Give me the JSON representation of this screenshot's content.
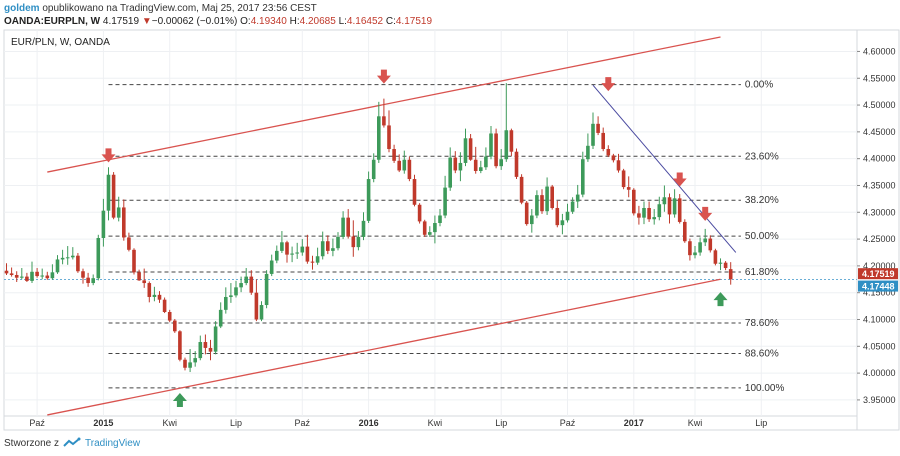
{
  "header": {
    "author": "goldem",
    "published": "opublikowano na TradingView.com, Maj 25, 2017 23:56 CEST",
    "symbol": "OANDA:EURPLN, W",
    "last": "4.17519",
    "change_arrow": "▼",
    "change": "−0.00062 (−0.01%)",
    "open_label": "O:",
    "open": "4.19340",
    "high_label": "H:",
    "high": "4.20685",
    "low_label": "L:",
    "low": "4.16452",
    "close_label": "C:",
    "close": "4.17519"
  },
  "footer": {
    "prefix": "Stworzone z",
    "brand": "TradingView",
    "icon": "tradingview-logo-icon"
  },
  "colors": {
    "up": "#3d9a5a",
    "down": "#c0392b",
    "channel": "#d9534f",
    "trend": "#4a4aa0",
    "arrow_down": "#d9534f",
    "arrow_up": "#3d9a5a",
    "grid": "#eef0f3",
    "axis_text": "#333333"
  },
  "chart_data": {
    "type": "candlestick",
    "title": "EUR/PLN, W, OANDA",
    "ylim": [
      3.92,
      4.64
    ],
    "y_ticks": [
      "4.60000",
      "4.55000",
      "4.50000",
      "4.45000",
      "4.40000",
      "4.35000",
      "4.30000",
      "4.25000",
      "4.20000",
      "4.15000",
      "4.10000",
      "4.05000",
      "4.00000",
      "3.95000"
    ],
    "x_ticks": [
      {
        "label": "Paź",
        "week": 6,
        "bold": false
      },
      {
        "label": "2015",
        "week": 19,
        "bold": true
      },
      {
        "label": "Kwi",
        "week": 32,
        "bold": false
      },
      {
        "label": "Lip",
        "week": 45,
        "bold": false
      },
      {
        "label": "Paź",
        "week": 58,
        "bold": false
      },
      {
        "label": "2016",
        "week": 71,
        "bold": true
      },
      {
        "label": "Kwi",
        "week": 84,
        "bold": false
      },
      {
        "label": "Lip",
        "week": 97,
        "bold": false
      },
      {
        "label": "Paź",
        "week": 110,
        "bold": false
      },
      {
        "label": "2017",
        "week": 123,
        "bold": true
      },
      {
        "label": "Kwi",
        "week": 135,
        "bold": false
      },
      {
        "label": "Lip",
        "week": 148,
        "bold": false
      }
    ],
    "price_labels": [
      {
        "value": 4.17519,
        "text": "4.17519",
        "color": "#c0392b"
      },
      {
        "value": 4.17448,
        "text": "4.17448",
        "color": "#2f8fc4"
      }
    ],
    "current_price_line": 4.1745,
    "fibonacci": [
      {
        "label": "0.00%",
        "value": 4.538
      },
      {
        "label": "23.60%",
        "value": 4.4045
      },
      {
        "label": "38.20%",
        "value": 4.3225
      },
      {
        "label": "50.00%",
        "value": 4.2555
      },
      {
        "label": "61.80%",
        "value": 4.1885
      },
      {
        "label": "78.60%",
        "value": 4.0935
      },
      {
        "label": "88.60%",
        "value": 4.0365
      },
      {
        "label": "100.00%",
        "value": 3.9725
      }
    ],
    "fib_week_range": [
      20,
      144
    ],
    "channel_lines": [
      {
        "w1": 8,
        "v1": 4.375,
        "w2": 140,
        "v2": 4.627
      },
      {
        "w1": 8,
        "v1": 3.922,
        "w2": 140,
        "v2": 4.175
      }
    ],
    "trend_line": {
      "w1": 115,
      "v1": 4.537,
      "w2": 143,
      "v2": 4.225
    },
    "markers": [
      {
        "dir": "down",
        "week": 20,
        "value": 4.393
      },
      {
        "dir": "down",
        "week": 74,
        "value": 4.54
      },
      {
        "dir": "down",
        "week": 118,
        "value": 4.526
      },
      {
        "dir": "down",
        "week": 132,
        "value": 4.348
      },
      {
        "dir": "down",
        "week": 137,
        "value": 4.284
      },
      {
        "dir": "up",
        "week": 34,
        "value": 3.963
      },
      {
        "dir": "up",
        "week": 140,
        "value": 4.151
      }
    ],
    "candles": [
      [
        4.191,
        4.205,
        4.198,
        4.183,
        4.186
      ],
      [
        4.186,
        4.197,
        4.195,
        4.18,
        4.183
      ],
      [
        4.183,
        4.19,
        4.189,
        4.17,
        4.178
      ],
      [
        4.178,
        4.196,
        4.193,
        4.175,
        4.18
      ],
      [
        4.18,
        4.187,
        4.185,
        4.17,
        4.172
      ],
      [
        4.172,
        4.208,
        4.2,
        4.168,
        4.189
      ],
      [
        4.189,
        4.196,
        4.194,
        4.178,
        4.181
      ],
      [
        4.181,
        4.195,
        4.19,
        4.175,
        4.182
      ],
      [
        4.182,
        4.189,
        4.186,
        4.174,
        4.177
      ],
      [
        4.177,
        4.203,
        4.198,
        4.174,
        4.188
      ],
      [
        4.188,
        4.22,
        4.218,
        4.185,
        4.212
      ],
      [
        4.212,
        4.23,
        4.223,
        4.203,
        4.215
      ],
      [
        4.215,
        4.237,
        4.222,
        4.202,
        4.216
      ],
      [
        4.216,
        4.235,
        4.227,
        4.212,
        4.219
      ],
      [
        4.219,
        4.224,
        4.221,
        4.187,
        4.19
      ],
      [
        4.19,
        4.195,
        4.193,
        4.167,
        4.178
      ],
      [
        4.178,
        4.187,
        4.186,
        4.161,
        4.168
      ],
      [
        4.168,
        4.184,
        4.181,
        4.164,
        4.177
      ],
      [
        4.177,
        4.258,
        4.256,
        4.173,
        4.252
      ],
      [
        4.252,
        4.325,
        4.319,
        4.236,
        4.303
      ],
      [
        4.303,
        4.384,
        4.38,
        4.285,
        4.37
      ],
      [
        4.37,
        4.375,
        4.37,
        4.287,
        4.29
      ],
      [
        4.29,
        4.329,
        4.322,
        4.283,
        4.309
      ],
      [
        4.309,
        4.324,
        4.319,
        4.247,
        4.253
      ],
      [
        4.253,
        4.262,
        4.26,
        4.227,
        4.23
      ],
      [
        4.23,
        4.233,
        4.231,
        4.184,
        4.188
      ],
      [
        4.188,
        4.193,
        4.192,
        4.172,
        4.173
      ],
      [
        4.173,
        4.195,
        4.178,
        4.159,
        4.168
      ],
      [
        4.168,
        4.171,
        4.17,
        4.132,
        4.142
      ],
      [
        4.142,
        4.161,
        4.148,
        4.134,
        4.146
      ],
      [
        4.146,
        4.153,
        4.151,
        4.131,
        4.137
      ],
      [
        4.137,
        4.141,
        4.139,
        4.112,
        4.114
      ],
      [
        4.114,
        4.118,
        4.116,
        4.095,
        4.098
      ],
      [
        4.098,
        4.101,
        4.099,
        4.075,
        4.078
      ],
      [
        4.078,
        4.08,
        4.078,
        4.022,
        4.025
      ],
      [
        4.025,
        4.029,
        4.028,
        4.005,
        4.01
      ],
      [
        4.01,
        4.045,
        4.025,
        4.002,
        4.02
      ],
      [
        4.02,
        4.041,
        4.03,
        4.012,
        4.028
      ],
      [
        4.028,
        4.07,
        4.064,
        4.024,
        4.058
      ],
      [
        4.058,
        4.072,
        4.065,
        4.035,
        4.047
      ],
      [
        4.047,
        4.062,
        4.051,
        4.024,
        4.04
      ],
      [
        4.04,
        4.097,
        4.093,
        4.035,
        4.087
      ],
      [
        4.087,
        4.132,
        4.128,
        4.084,
        4.118
      ],
      [
        4.118,
        4.16,
        4.153,
        4.111,
        4.142
      ],
      [
        4.142,
        4.168,
        4.156,
        4.131,
        4.145
      ],
      [
        4.145,
        4.172,
        4.164,
        4.141,
        4.16
      ],
      [
        4.16,
        4.18,
        4.176,
        4.151,
        4.168
      ],
      [
        4.168,
        4.196,
        4.182,
        4.164,
        4.18
      ],
      [
        4.18,
        4.192,
        4.187,
        4.146,
        4.15
      ],
      [
        4.15,
        4.175,
        4.152,
        4.097,
        4.1
      ],
      [
        4.1,
        4.134,
        4.132,
        4.097,
        4.127
      ],
      [
        4.127,
        4.192,
        4.187,
        4.121,
        4.185
      ],
      [
        4.185,
        4.221,
        4.216,
        4.181,
        4.21
      ],
      [
        4.21,
        4.238,
        4.234,
        4.205,
        4.228
      ],
      [
        4.228,
        4.265,
        4.254,
        4.224,
        4.244
      ],
      [
        4.244,
        4.247,
        4.239,
        4.206,
        4.221
      ],
      [
        4.221,
        4.236,
        4.225,
        4.207,
        4.223
      ],
      [
        4.223,
        4.243,
        4.236,
        4.213,
        4.225
      ],
      [
        4.225,
        4.25,
        4.242,
        4.219,
        4.236
      ],
      [
        4.236,
        4.258,
        4.25,
        4.204,
        4.208
      ],
      [
        4.208,
        4.219,
        4.217,
        4.193,
        4.206
      ],
      [
        4.206,
        4.234,
        4.229,
        4.202,
        4.218
      ],
      [
        4.218,
        4.264,
        4.258,
        4.212,
        4.246
      ],
      [
        4.246,
        4.257,
        4.25,
        4.222,
        4.228
      ],
      [
        4.228,
        4.251,
        4.238,
        4.218,
        4.233
      ],
      [
        4.233,
        4.263,
        4.257,
        4.229,
        4.254
      ],
      [
        4.254,
        4.302,
        4.298,
        4.25,
        4.29
      ],
      [
        4.29,
        4.306,
        4.301,
        4.251,
        4.255
      ],
      [
        4.255,
        4.285,
        4.268,
        4.217,
        4.235
      ],
      [
        4.235,
        4.265,
        4.262,
        4.229,
        4.254
      ],
      [
        4.254,
        4.3,
        4.288,
        4.248,
        4.284
      ],
      [
        4.284,
        4.376,
        4.373,
        4.28,
        4.362
      ],
      [
        4.362,
        4.41,
        4.405,
        4.356,
        4.398
      ],
      [
        4.398,
        4.506,
        4.494,
        4.392,
        4.479
      ],
      [
        4.479,
        4.512,
        4.502,
        4.458,
        4.462
      ],
      [
        4.462,
        4.49,
        4.48,
        4.412,
        4.418
      ],
      [
        4.418,
        4.426,
        4.42,
        4.392,
        4.396
      ],
      [
        4.396,
        4.408,
        4.406,
        4.375,
        4.378
      ],
      [
        4.378,
        4.415,
        4.404,
        4.372,
        4.398
      ],
      [
        4.398,
        4.404,
        4.402,
        4.358,
        4.362
      ],
      [
        4.362,
        4.37,
        4.366,
        4.311,
        4.314
      ],
      [
        4.314,
        4.317,
        4.315,
        4.279,
        4.283
      ],
      [
        4.283,
        4.286,
        4.284,
        4.254,
        4.258
      ],
      [
        4.258,
        4.274,
        4.268,
        4.254,
        4.263
      ],
      [
        4.263,
        4.294,
        4.29,
        4.242,
        4.28
      ],
      [
        4.28,
        4.306,
        4.299,
        4.274,
        4.294
      ],
      [
        4.294,
        4.368,
        4.355,
        4.289,
        4.346
      ],
      [
        4.346,
        4.421,
        4.412,
        4.34,
        4.402
      ],
      [
        4.402,
        4.414,
        4.41,
        4.373,
        4.378
      ],
      [
        4.378,
        4.412,
        4.407,
        4.358,
        4.392
      ],
      [
        4.392,
        4.456,
        4.443,
        4.386,
        4.438
      ],
      [
        4.438,
        4.446,
        4.442,
        4.396,
        4.398
      ],
      [
        4.398,
        4.422,
        4.419,
        4.372,
        4.377
      ],
      [
        4.377,
        4.396,
        4.392,
        4.373,
        4.384
      ],
      [
        4.384,
        4.421,
        4.413,
        4.379,
        4.404
      ],
      [
        4.404,
        4.461,
        4.452,
        4.399,
        4.447
      ],
      [
        4.447,
        4.456,
        4.452,
        4.382,
        4.386
      ],
      [
        4.386,
        4.418,
        4.407,
        4.379,
        4.399
      ],
      [
        4.399,
        4.541,
        4.462,
        4.394,
        4.453
      ],
      [
        4.453,
        4.456,
        4.454,
        4.405,
        4.413
      ],
      [
        4.413,
        4.419,
        4.417,
        4.362,
        4.366
      ],
      [
        4.366,
        4.371,
        4.369,
        4.315,
        4.318
      ],
      [
        4.318,
        4.321,
        4.319,
        4.275,
        4.278
      ],
      [
        4.278,
        4.306,
        4.292,
        4.262,
        4.294
      ],
      [
        4.294,
        4.341,
        4.335,
        4.289,
        4.332
      ],
      [
        4.332,
        4.343,
        4.339,
        4.297,
        4.302
      ],
      [
        4.302,
        4.365,
        4.36,
        4.295,
        4.348
      ],
      [
        4.348,
        4.351,
        4.349,
        4.305,
        4.308
      ],
      [
        4.308,
        4.321,
        4.314,
        4.272,
        4.276
      ],
      [
        4.276,
        4.297,
        4.293,
        4.259,
        4.285
      ],
      [
        4.285,
        4.316,
        4.306,
        4.281,
        4.301
      ],
      [
        4.301,
        4.328,
        4.323,
        4.297,
        4.32
      ],
      [
        4.32,
        4.351,
        4.341,
        4.308,
        4.333
      ],
      [
        4.333,
        4.413,
        4.409,
        4.328,
        4.399
      ],
      [
        4.399,
        4.447,
        4.44,
        4.394,
        4.424
      ],
      [
        4.424,
        4.486,
        4.475,
        4.418,
        4.465
      ],
      [
        4.465,
        4.479,
        4.47,
        4.444,
        4.448
      ],
      [
        4.448,
        4.458,
        4.454,
        4.414,
        4.418
      ],
      [
        4.418,
        4.425,
        4.422,
        4.403,
        4.406
      ],
      [
        4.406,
        4.409,
        4.407,
        4.393,
        4.397
      ],
      [
        4.397,
        4.409,
        4.401,
        4.374,
        4.378
      ],
      [
        4.378,
        4.381,
        4.379,
        4.343,
        4.347
      ],
      [
        4.347,
        4.367,
        4.353,
        4.328,
        4.342
      ],
      [
        4.342,
        4.345,
        4.343,
        4.294,
        4.298
      ],
      [
        4.298,
        4.312,
        4.304,
        4.277,
        4.29
      ],
      [
        4.29,
        4.32,
        4.317,
        4.278,
        4.308
      ],
      [
        4.308,
        4.32,
        4.313,
        4.282,
        4.287
      ],
      [
        4.287,
        4.306,
        4.298,
        4.277,
        4.291
      ],
      [
        4.291,
        4.329,
        4.325,
        4.285,
        4.315
      ],
      [
        4.315,
        4.35,
        4.338,
        4.301,
        4.328
      ],
      [
        4.328,
        4.335,
        4.329,
        4.279,
        4.296
      ],
      [
        4.296,
        4.343,
        4.337,
        4.29,
        4.326
      ],
      [
        4.326,
        4.334,
        4.329,
        4.279,
        4.282
      ],
      [
        4.282,
        4.287,
        4.284,
        4.243,
        4.246
      ],
      [
        4.246,
        4.251,
        4.248,
        4.21,
        4.22
      ],
      [
        4.22,
        4.237,
        4.23,
        4.214,
        4.225
      ],
      [
        4.225,
        4.253,
        4.249,
        4.219,
        4.244
      ],
      [
        4.244,
        4.269,
        4.262,
        4.237,
        4.251
      ],
      [
        4.251,
        4.257,
        4.253,
        4.225,
        4.229
      ],
      [
        4.229,
        4.232,
        4.23,
        4.201,
        4.204
      ],
      [
        4.204,
        4.214,
        4.21,
        4.192,
        4.206
      ],
      [
        4.206,
        4.209,
        4.207,
        4.192,
        4.196
      ],
      [
        4.194,
        4.207,
        4.198,
        4.165,
        4.175
      ]
    ]
  }
}
